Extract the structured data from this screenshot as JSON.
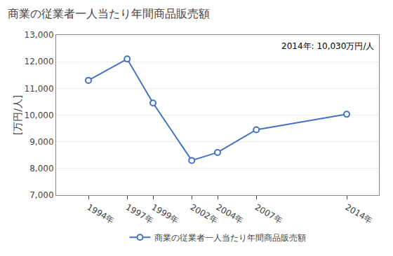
{
  "chart_data": {
    "type": "line",
    "title": "商業の従業者一人当たり年間商品販売額",
    "ylabel": "[万円/人]",
    "annotation": "2014年: 10,030万円/人",
    "x": [
      1994,
      1997,
      1999,
      2002,
      2004,
      2007,
      2014
    ],
    "series": [
      {
        "name": "商業の従業者一人当たり年間商品販売額",
        "color": "#4472C4",
        "marker": "circle",
        "line_style": "solid",
        "values": [
          11300,
          12100,
          10450,
          8300,
          8600,
          9450,
          10030
        ]
      }
    ],
    "xlim": [
      1991.5,
      2016.5
    ],
    "xticks": [
      {
        "value": 1994,
        "label": "1994年"
      },
      {
        "value": 1997,
        "label": "1997年"
      },
      {
        "value": 1999,
        "label": "1999年"
      },
      {
        "value": 2002,
        "label": "2002年"
      },
      {
        "value": 2004,
        "label": "2004年"
      },
      {
        "value": 2007,
        "label": "2007年"
      },
      {
        "value": 2014,
        "label": "2014年"
      }
    ],
    "ylim": [
      7000,
      13000
    ],
    "yticks": [
      {
        "value": 7000,
        "label": "7,000"
      },
      {
        "value": 8000,
        "label": "8,000"
      },
      {
        "value": 9000,
        "label": "9,000"
      },
      {
        "value": 10000,
        "label": "10,000"
      },
      {
        "value": 11000,
        "label": "11,000"
      },
      {
        "value": 12000,
        "label": "12,000"
      },
      {
        "value": 13000,
        "label": "13,000"
      }
    ],
    "grid": true,
    "legend": "bottom"
  }
}
